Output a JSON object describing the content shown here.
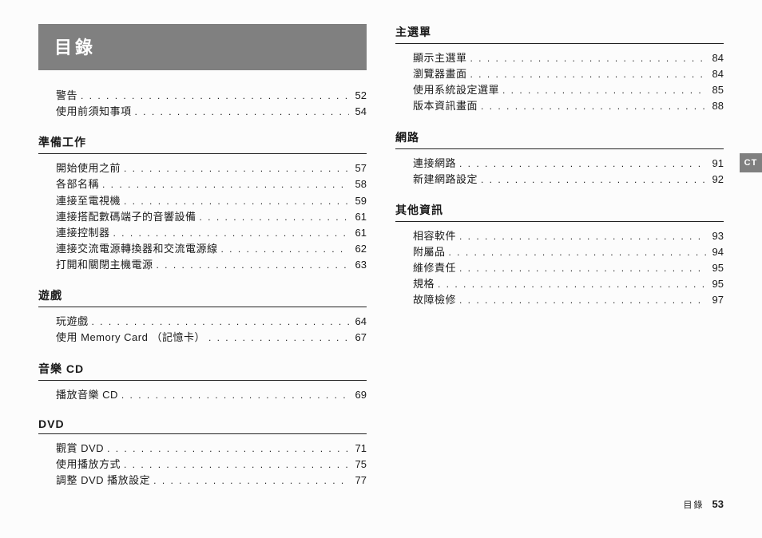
{
  "title": "目錄",
  "side_tab": "CT",
  "footer": {
    "label": "目錄",
    "page": "53"
  },
  "colors": {
    "title_bar_bg": "#808080",
    "title_bar_fg": "#ffffff",
    "text": "#1a1a1a",
    "rule": "#222222",
    "page_bg": "#fcfcfc"
  },
  "left_sections": [
    {
      "heading": null,
      "items": [
        {
          "label": "警告",
          "page": "52"
        },
        {
          "label": "使用前須知事項",
          "page": "54"
        }
      ]
    },
    {
      "heading": "準備工作",
      "items": [
        {
          "label": "開始使用之前",
          "page": "57"
        },
        {
          "label": "各部名稱",
          "page": "58"
        },
        {
          "label": "連接至電視機",
          "page": "59"
        },
        {
          "label": "連接搭配數碼端子的音響設備",
          "page": "61"
        },
        {
          "label": "連接控制器",
          "page": "61"
        },
        {
          "label": "連接交流電源轉換器和交流電源線",
          "page": "62"
        },
        {
          "label": "打開和關閉主機電源",
          "page": "63"
        }
      ]
    },
    {
      "heading": "遊戲",
      "items": [
        {
          "label": "玩遊戲",
          "page": "64"
        },
        {
          "label": "使用 Memory Card （記憶卡）",
          "page": "67"
        }
      ]
    },
    {
      "heading": "音樂 CD",
      "items": [
        {
          "label": "播放音樂 CD",
          "page": "69"
        }
      ]
    },
    {
      "heading": "DVD",
      "items": [
        {
          "label": "觀賞 DVD",
          "page": "71"
        },
        {
          "label": "使用播放方式",
          "page": "75"
        },
        {
          "label": "調整 DVD 播放設定",
          "page": "77"
        }
      ]
    }
  ],
  "right_sections": [
    {
      "heading": "主選單",
      "items": [
        {
          "label": "顯示主選單",
          "page": "84"
        },
        {
          "label": "瀏覽器畫面",
          "page": "84"
        },
        {
          "label": "使用系統設定選單",
          "page": "85"
        },
        {
          "label": "版本資訊畫面",
          "page": "88"
        }
      ]
    },
    {
      "heading": "網路",
      "items": [
        {
          "label": "連接網路",
          "page": "91"
        },
        {
          "label": "新建網路設定",
          "page": "92"
        }
      ]
    },
    {
      "heading": "其他資訊",
      "items": [
        {
          "label": "相容軟件",
          "page": "93"
        },
        {
          "label": "附屬品",
          "page": "94"
        },
        {
          "label": "維修責任",
          "page": "95"
        },
        {
          "label": "規格",
          "page": "95"
        },
        {
          "label": "故障檢修",
          "page": "97"
        }
      ]
    }
  ]
}
